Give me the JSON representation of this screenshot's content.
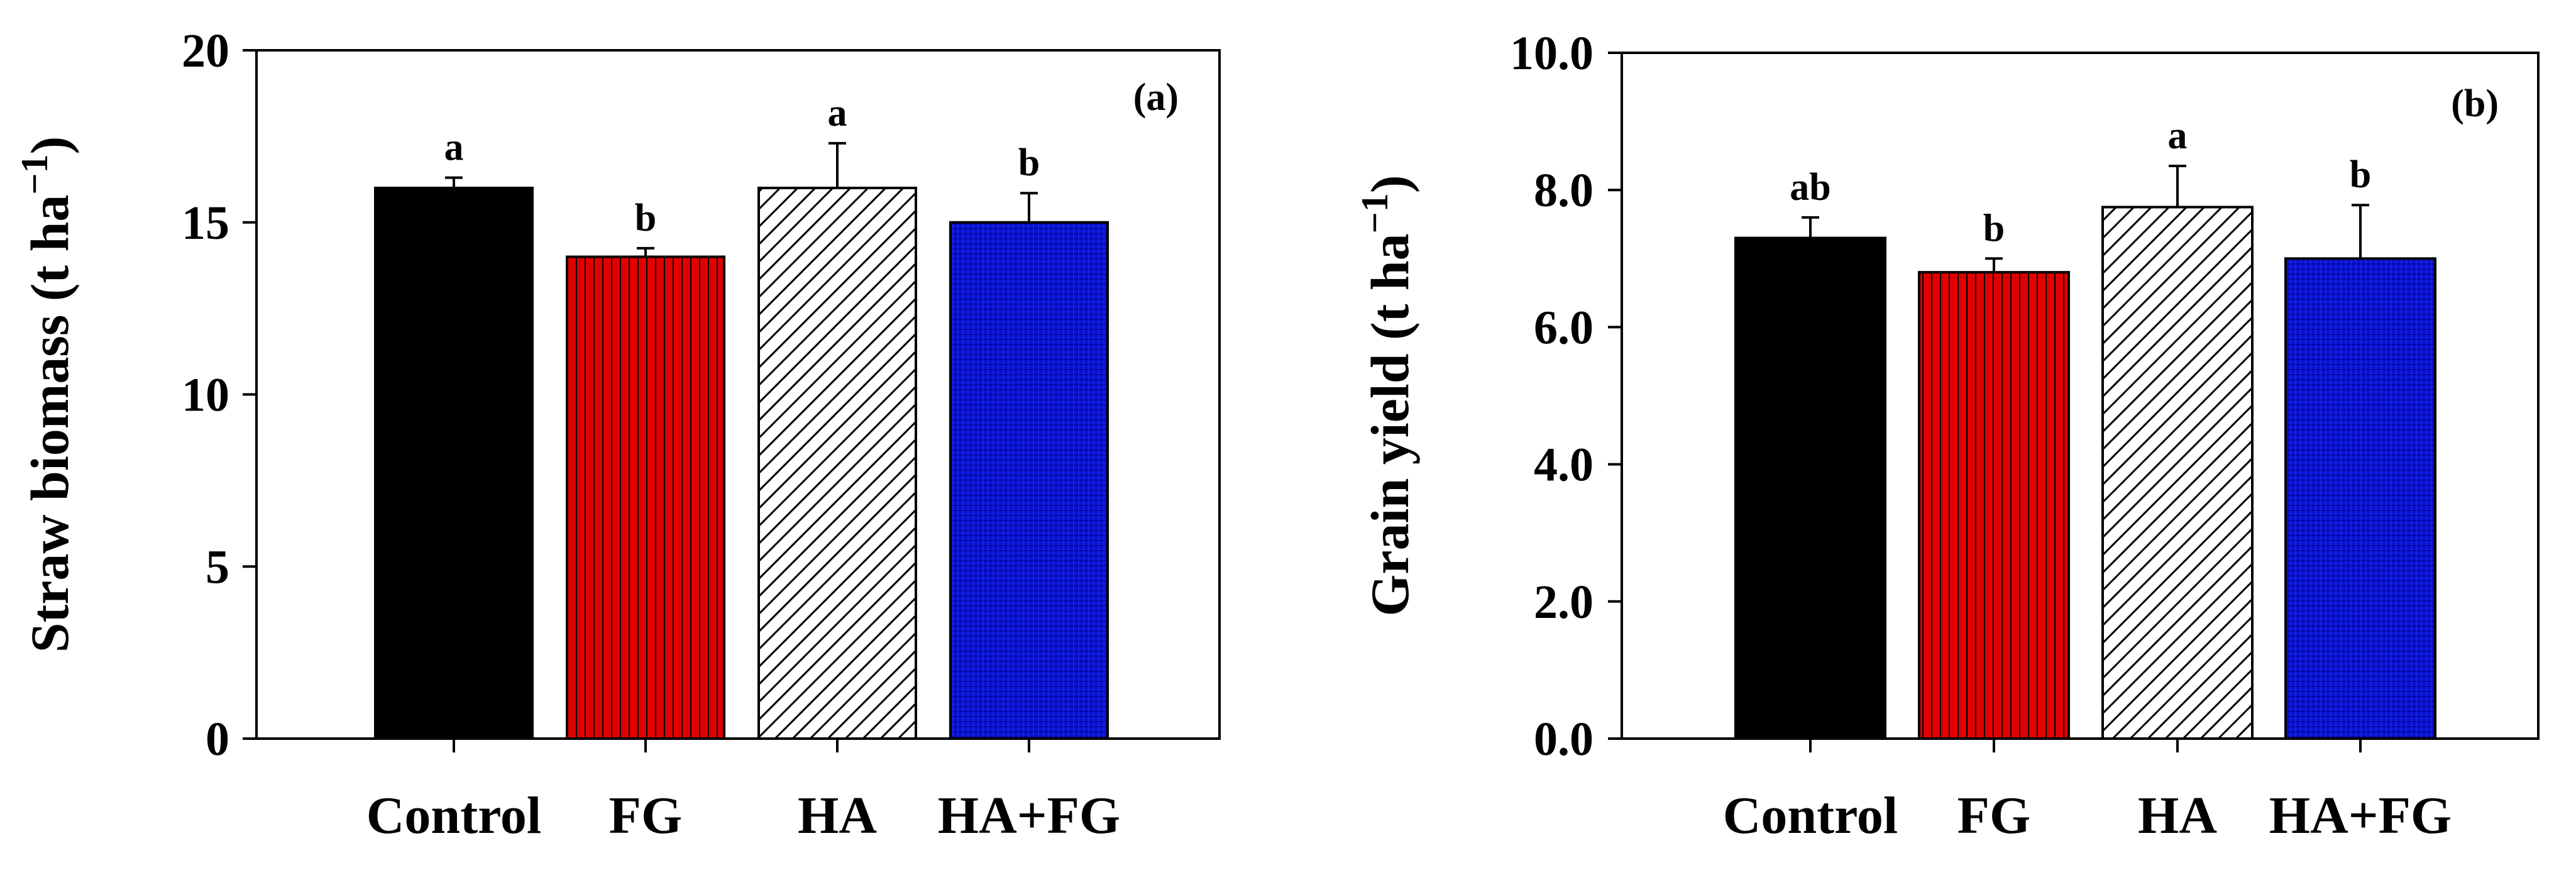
{
  "chart_data": [
    {
      "type": "bar",
      "panel_label": "(a)",
      "categories": [
        "Control",
        "FG",
        "HA",
        "HA+FG"
      ],
      "values": [
        16.0,
        14.0,
        16.0,
        15.0
      ],
      "errors": [
        0.3,
        0.25,
        1.3,
        0.85
      ],
      "letters": [
        "a",
        "b",
        "a",
        "b"
      ],
      "ylabel_main": "Straw biomass (t ha",
      "ylabel_sup": "−1",
      "ylabel_close": ")",
      "ylim": [
        0,
        20
      ],
      "yticks": [
        0,
        5,
        10,
        15,
        20
      ],
      "ytick_labels": [
        "0",
        "5",
        "10",
        "15",
        "20"
      ]
    },
    {
      "type": "bar",
      "panel_label": "(b)",
      "categories": [
        "Control",
        "FG",
        "HA",
        "HA+FG"
      ],
      "values": [
        7.3,
        6.8,
        7.75,
        7.0
      ],
      "errors": [
        0.3,
        0.2,
        0.6,
        0.78
      ],
      "letters": [
        "ab",
        "b",
        "a",
        "b"
      ],
      "ylabel_main": "Grain yield (t ha",
      "ylabel_sup": "−1",
      "ylabel_close": ")",
      "ylim": [
        0,
        10
      ],
      "yticks": [
        0,
        2,
        4,
        6,
        8,
        10
      ],
      "ytick_labels": [
        "0.0",
        "2.0",
        "4.0",
        "6.0",
        "8.0",
        "10.0"
      ]
    }
  ],
  "colors": {
    "Control": "#000000",
    "FG": "#e10000",
    "HA": "#ffffff",
    "HA+FG": "#0a14d2"
  },
  "patterns": {
    "Control": "solid",
    "FG": "vertical-lines",
    "HA": "diagonal-hatch",
    "HA+FG": "fine-grid"
  }
}
